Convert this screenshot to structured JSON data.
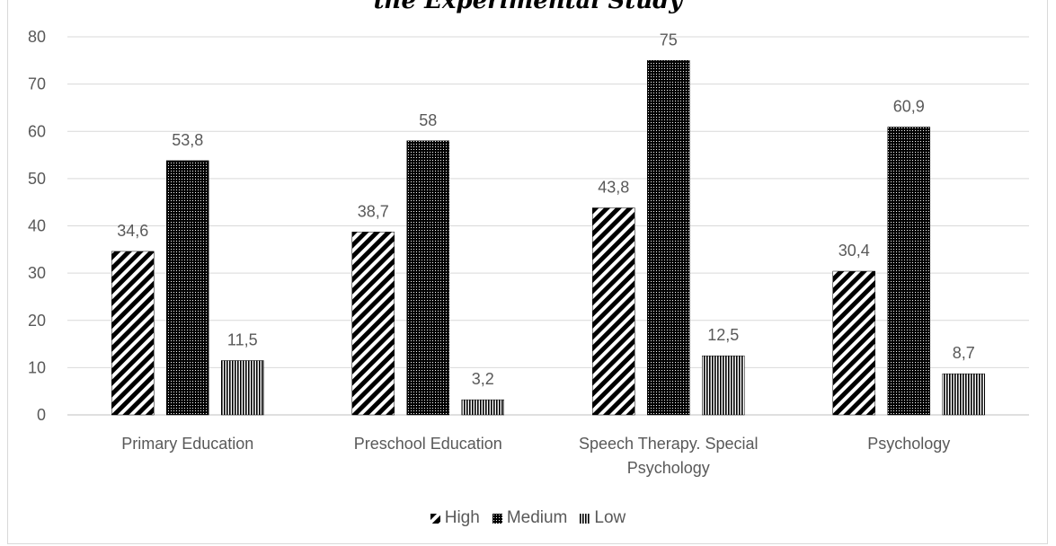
{
  "chart_data": {
    "type": "bar",
    "title": "the Experimental Study",
    "categories": [
      "Primary Education",
      "Preschool Education",
      "Speech Therapy. Special Psychology",
      "Psychology"
    ],
    "category_lines": [
      [
        "Primary Education"
      ],
      [
        "Preschool Education"
      ],
      [
        "Speech Therapy. Special",
        "Psychology"
      ],
      [
        "Psychology"
      ]
    ],
    "series": [
      {
        "name": "High",
        "values": [
          34.6,
          38.7,
          43.8,
          30.4
        ],
        "labels": [
          "34,6",
          "38,7",
          "43,8",
          "30,4"
        ],
        "pattern": "diagonal-stripes"
      },
      {
        "name": "Medium",
        "values": [
          53.8,
          58,
          75,
          60.9
        ],
        "labels": [
          "53,8",
          "58",
          "75",
          "60,9"
        ],
        "pattern": "dense-dots"
      },
      {
        "name": "Low",
        "values": [
          11.5,
          3.2,
          12.5,
          8.7
        ],
        "labels": [
          "11,5",
          "3,2",
          "12,5",
          "8,7"
        ],
        "pattern": "vertical-stripes"
      }
    ],
    "ylim": [
      0,
      80
    ],
    "yticks": [
      "0",
      "10",
      "20",
      "30",
      "40",
      "50",
      "60",
      "70",
      "80"
    ],
    "grid": true,
    "legend_position": "bottom",
    "colors": {
      "bars": "#000000",
      "grid": "#d9d9d9",
      "text": "#595959"
    }
  }
}
